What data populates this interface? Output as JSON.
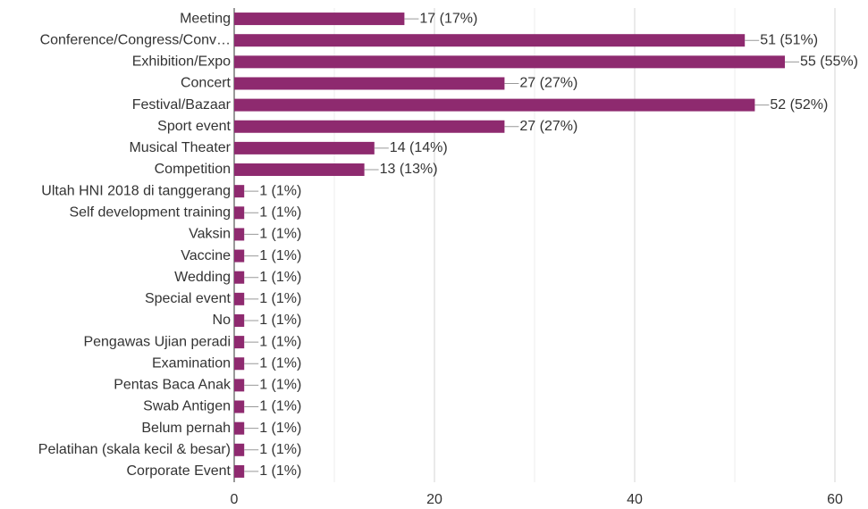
{
  "chart_data": {
    "type": "bar",
    "orientation": "horizontal",
    "categories": [
      "Meeting",
      "Conference/Congress/Conv…",
      "Exhibition/Expo",
      "Concert",
      "Festival/Bazaar",
      "Sport event",
      "Musical Theater",
      "Competition",
      "Ultah HNI 2018 di tanggerang",
      "Self development training",
      "Vaksin",
      "Vaccine",
      "Wedding",
      "Special event",
      "No",
      "Pengawas Ujian peradi",
      "Examination",
      "Pentas Baca Anak",
      "Swab Antigen",
      "Belum pernah",
      "Pelatihan (skala kecil & besar)",
      "Corporate Event"
    ],
    "values": [
      17,
      51,
      55,
      27,
      52,
      27,
      14,
      13,
      1,
      1,
      1,
      1,
      1,
      1,
      1,
      1,
      1,
      1,
      1,
      1,
      1,
      1
    ],
    "value_labels": [
      "17 (17%)",
      "51 (51%)",
      "55 (55%)",
      "27 (27%)",
      "52 (52%)",
      "27 (27%)",
      "14 (14%)",
      "13 (13%)",
      "1 (1%)",
      "1 (1%)",
      "1 (1%)",
      "1 (1%)",
      "1 (1%)",
      "1 (1%)",
      "1 (1%)",
      "1 (1%)",
      "1 (1%)",
      "1 (1%)",
      "1 (1%)",
      "1 (1%)",
      "1 (1%)",
      "1 (1%)"
    ],
    "color": "#8e2a6f",
    "xlim": [
      0,
      60
    ],
    "xticks": [
      0,
      20,
      40,
      60
    ],
    "xminorticks": [
      10,
      30,
      50
    ],
    "grid": true
  }
}
